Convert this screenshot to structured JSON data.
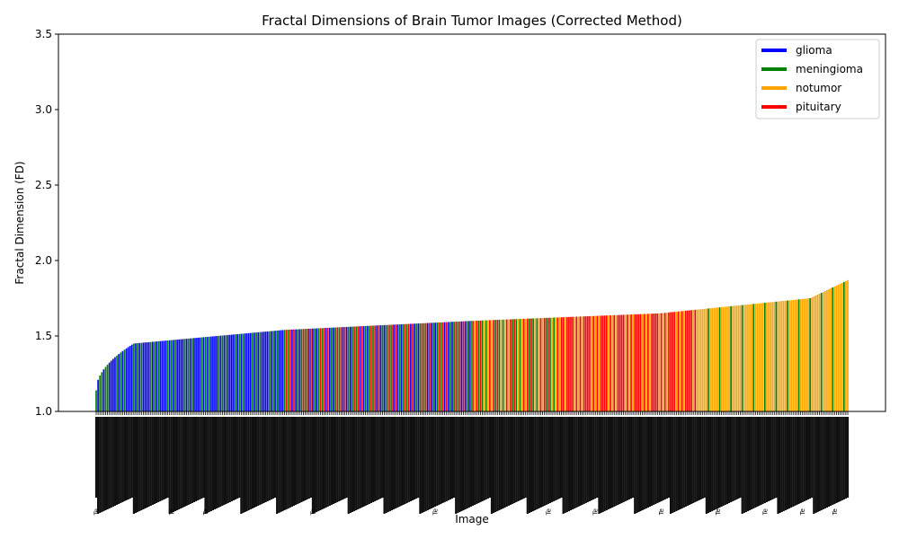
{
  "chart_data": {
    "type": "bar",
    "title": "Fractal Dimensions of Brain Tumor Images (Corrected Method)",
    "xlabel": "Image",
    "ylabel": "Fractal Dimension (FD)",
    "ylim": [
      1.0,
      3.5
    ],
    "yticks": [
      "1.0",
      "1.5",
      "2.0",
      "2.5",
      "3.0",
      "3.5"
    ],
    "grid": false,
    "legend_position": "top-right",
    "series": [
      {
        "name": "glioma",
        "color": "#0000ff"
      },
      {
        "name": "meningioma",
        "color": "#008000"
      },
      {
        "name": "notumor",
        "color": "#ffa500"
      },
      {
        "name": "pituitary",
        "color": "#ff0000"
      }
    ],
    "x_tick_label_prefix": "Te",
    "n_images": 400,
    "value_profile": {
      "sorted_ascending": true,
      "fd_min": 1.14,
      "fd_p05": 1.45,
      "fd_p25": 1.54,
      "fd_median": 1.6,
      "fd_p75": 1.65,
      "fd_p95": 1.75,
      "fd_max": 1.87
    },
    "category_order_profile": [
      {
        "until_fraction": 0.02,
        "mix": [
          "meningioma",
          "glioma"
        ]
      },
      {
        "until_fraction": 0.25,
        "mix": [
          "glioma",
          "glioma",
          "meningioma"
        ]
      },
      {
        "until_fraction": 0.5,
        "mix": [
          "glioma",
          "meningioma",
          "pituitary"
        ]
      },
      {
        "until_fraction": 0.62,
        "mix": [
          "meningioma",
          "notumor",
          "pituitary"
        ]
      },
      {
        "until_fraction": 0.8,
        "mix": [
          "pituitary",
          "pituitary",
          "notumor"
        ]
      },
      {
        "until_fraction": 1.0,
        "mix": [
          "notumor",
          "notumor",
          "notumor",
          "meningioma"
        ]
      }
    ]
  }
}
